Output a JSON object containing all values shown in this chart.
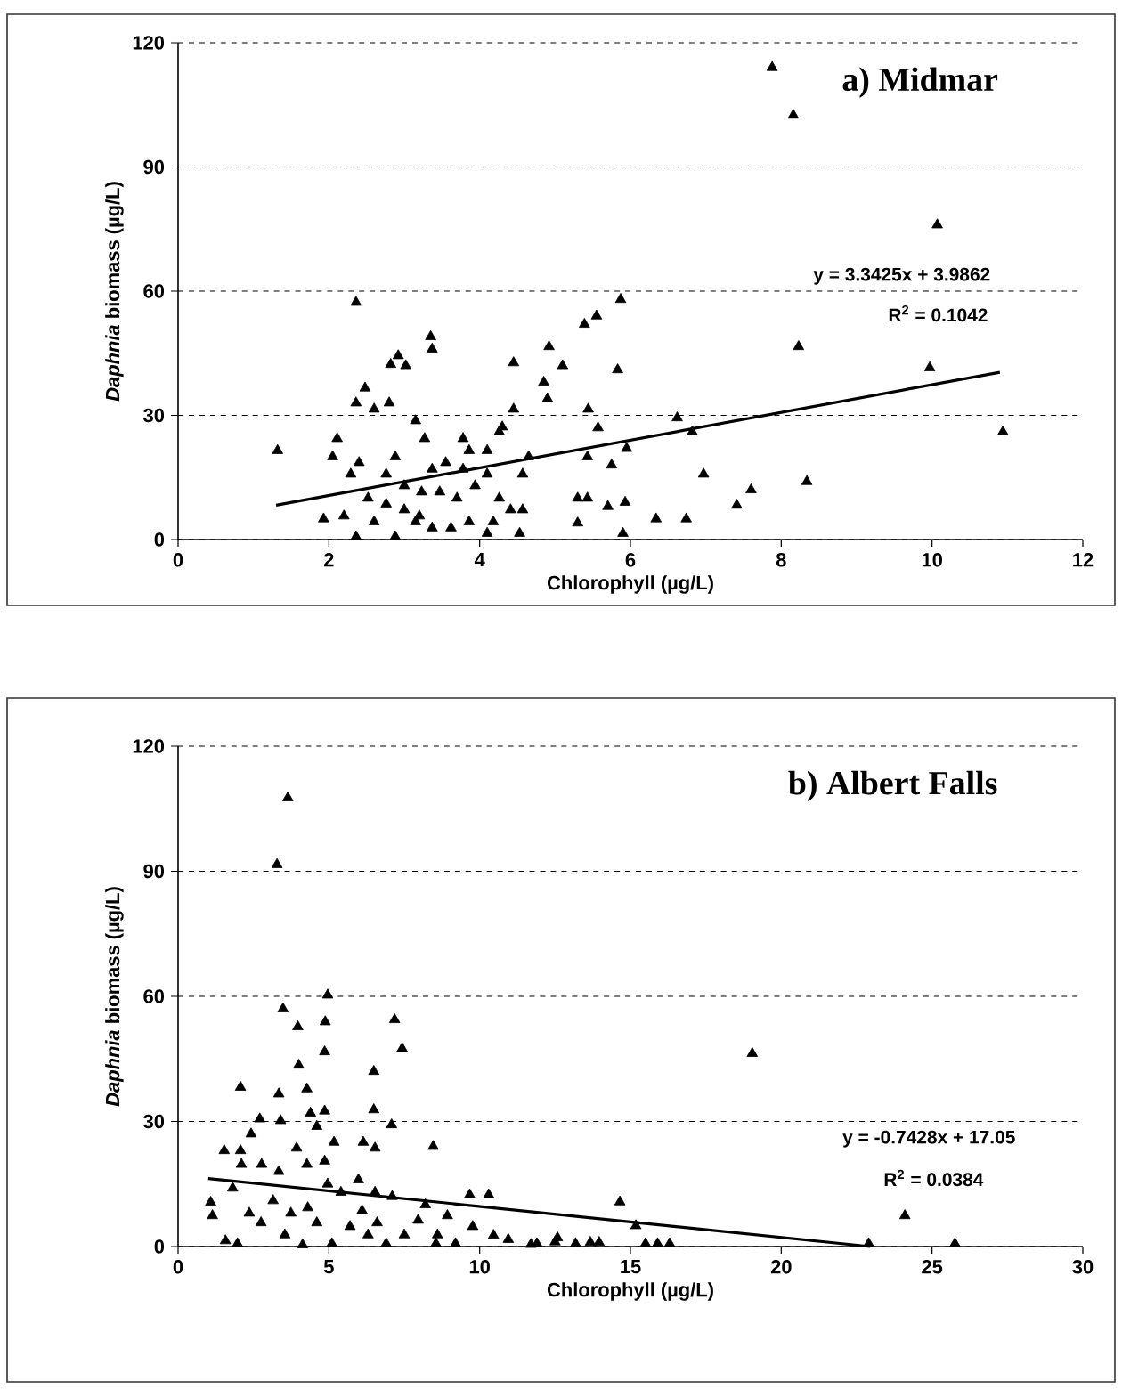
{
  "chart_data": [
    {
      "type": "scatter",
      "title": "a) Midmar",
      "xlabel": "Chlorophyll (µg/L)",
      "ylabel": "*Daphnia* biomass (µg/L)",
      "annotations": [
        "y = 3.3425x + 3.9862",
        "R$^{2}$ = 0.1042"
      ],
      "xlim": [
        0,
        12
      ],
      "ylim": [
        0,
        120
      ],
      "xticks": [
        0,
        2,
        4,
        6,
        8,
        10,
        12
      ],
      "yticks": [
        0,
        30,
        60,
        90,
        120
      ],
      "grid": "y",
      "series": [
        {
          "marker": "triangle",
          "color": "#000000",
          "x": [
            1.32,
            2.36,
            1.93,
            2.05,
            2.11,
            2.36,
            2.48,
            2.6,
            2.8,
            2.82,
            2.92,
            3.02,
            3.35,
            3.37,
            3.15,
            3.27,
            2.4,
            2.29,
            2.88,
            2.76,
            2.36,
            2.88,
            3.78,
            3.55,
            3.78,
            4.1,
            4.26,
            4.45,
            4.45,
            4.3,
            4.53,
            4.41,
            4.18,
            4.1,
            3.86,
            3.62,
            3.37,
            3.15,
            3.0,
            2.6,
            2.2,
            2.52,
            2.76,
            3.0,
            3.23,
            3.47,
            3.7,
            3.94,
            3.37,
            4.1,
            4.57,
            4.65,
            4.26,
            3.2,
            3.86,
            4.57,
            7.88,
            8.16,
            10.07,
            8.23,
            9.97,
            10.94,
            8.34,
            5.87,
            5.39,
            5.55,
            4.92,
            5.1,
            5.83,
            4.85,
            4.9,
            5.44,
            5.57,
            6.62,
            6.82,
            5.95,
            5.75,
            5.43,
            6.97,
            7.41,
            7.6,
            6.34,
            6.74,
            5.9,
            5.3,
            5.43,
            5.7,
            5.93,
            5.3
          ],
          "values": [
            21.5,
            57.3,
            5,
            20,
            24.4,
            33,
            36.6,
            31.5,
            33,
            42.3,
            44.4,
            42,
            49,
            46,
            28.7,
            24.4,
            18.6,
            15.8,
            20,
            15.8,
            0.7,
            0.7,
            24.4,
            18.6,
            17,
            21.5,
            26,
            42.7,
            31.5,
            27.2,
            1.5,
            7.2,
            4.3,
            1.5,
            4.3,
            2.8,
            2.8,
            4.3,
            7.2,
            4.3,
            5.7,
            10,
            8.6,
            13,
            11.5,
            11.5,
            10,
            13,
            17,
            15.8,
            15.8,
            20,
            10,
            5.7,
            21.5,
            7.2,
            114,
            102.5,
            76,
            46.6,
            41.5,
            26,
            14,
            58,
            52,
            54,
            46.6,
            42,
            41,
            38,
            34,
            31.5,
            27,
            29.4,
            26,
            22,
            18,
            20,
            15.8,
            8.3,
            12,
            5,
            5,
            1.5,
            10,
            10,
            8,
            9,
            4
          ]
        },
        {
          "type": "line",
          "color": "#000000",
          "x": [
            1.3,
            10.9
          ],
          "values": [
            8.3,
            40.4
          ]
        }
      ]
    },
    {
      "type": "scatter",
      "title": "b) Albert Falls",
      "xlabel": "Chlorophyll (µg/L)",
      "ylabel": "*Daphnia* biomass (µg/L)",
      "annotations": [
        "y = -0.7428x + 17.05",
        "R$^{2}$ = 0.0384"
      ],
      "xlim": [
        0,
        30
      ],
      "ylim": [
        0,
        120
      ],
      "xticks": [
        0,
        5,
        10,
        15,
        20,
        25,
        30
      ],
      "yticks": [
        0,
        30,
        60,
        90,
        120
      ],
      "grid": "y",
      "series": [
        {
          "marker": "triangle",
          "color": "#000000",
          "x": [
            3.64,
            3.28,
            4.96,
            3.48,
            3.97,
            4.88,
            4.86,
            7.18,
            7.43,
            4.0,
            6.49,
            2.07,
            3.34,
            4.27,
            3.4,
            2.71,
            4.39,
            4.86,
            4.6,
            6.49,
            7.08,
            6.14,
            6.53,
            8.46,
            5.17,
            1.53,
            2.07,
            2.42,
            2.1,
            1.81,
            1.08,
            1.14,
            2.77,
            3.34,
            3.93,
            4.27,
            4.86,
            4.96,
            5.4,
            5.98,
            6.53,
            7.1,
            8.2,
            8.93,
            9.67,
            10.3,
            9.77,
            10.46,
            10.95,
            11.7,
            12.5,
            1.57,
            1.97,
            2.75,
            3.54,
            4.13,
            4.6,
            5.1,
            5.7,
            6.3,
            6.9,
            7.5,
            7.96,
            8.55,
            9.2,
            8.6,
            2.36,
            3.15,
            3.74,
            4.3,
            6.1,
            6.6,
            19.04,
            24.1,
            22.9,
            25.76,
            14.65,
            15.18,
            15.5,
            15.9,
            16.3,
            12.58,
            13.18,
            13.67,
            13.96,
            11.9
          ],
          "values": [
            107.6,
            91.6,
            60.3,
            57,
            52.7,
            53.9,
            46.7,
            54.4,
            47.5,
            43.5,
            42,
            38.2,
            36.6,
            37.8,
            30.2,
            30.6,
            32,
            32.5,
            28.8,
            32.8,
            29.2,
            25,
            23.6,
            24,
            25,
            23,
            23,
            27,
            19.7,
            14,
            10.6,
            7.4,
            19.7,
            18,
            23.6,
            19.7,
            20.5,
            15,
            13,
            16,
            13,
            12,
            10,
            7.4,
            12.4,
            12.4,
            4.8,
            2.7,
            1.7,
            0.5,
            1.1,
            1.4,
            0.7,
            5.7,
            2.8,
            0.4,
            5.7,
            0.7,
            4.8,
            2.8,
            0.7,
            2.8,
            6.3,
            0.7,
            0.7,
            2.8,
            8,
            11,
            8,
            9.3,
            8.6,
            5.7,
            46.3,
            7.4,
            0.7,
            0.7,
            10.7,
            5,
            0.7,
            0.7,
            0.7,
            2.1,
            0.7,
            1,
            1,
            0.7
          ]
        },
        {
          "type": "line",
          "color": "#000000",
          "x": [
            1.0,
            22.95
          ],
          "values": [
            16.3,
            0
          ]
        }
      ]
    }
  ]
}
